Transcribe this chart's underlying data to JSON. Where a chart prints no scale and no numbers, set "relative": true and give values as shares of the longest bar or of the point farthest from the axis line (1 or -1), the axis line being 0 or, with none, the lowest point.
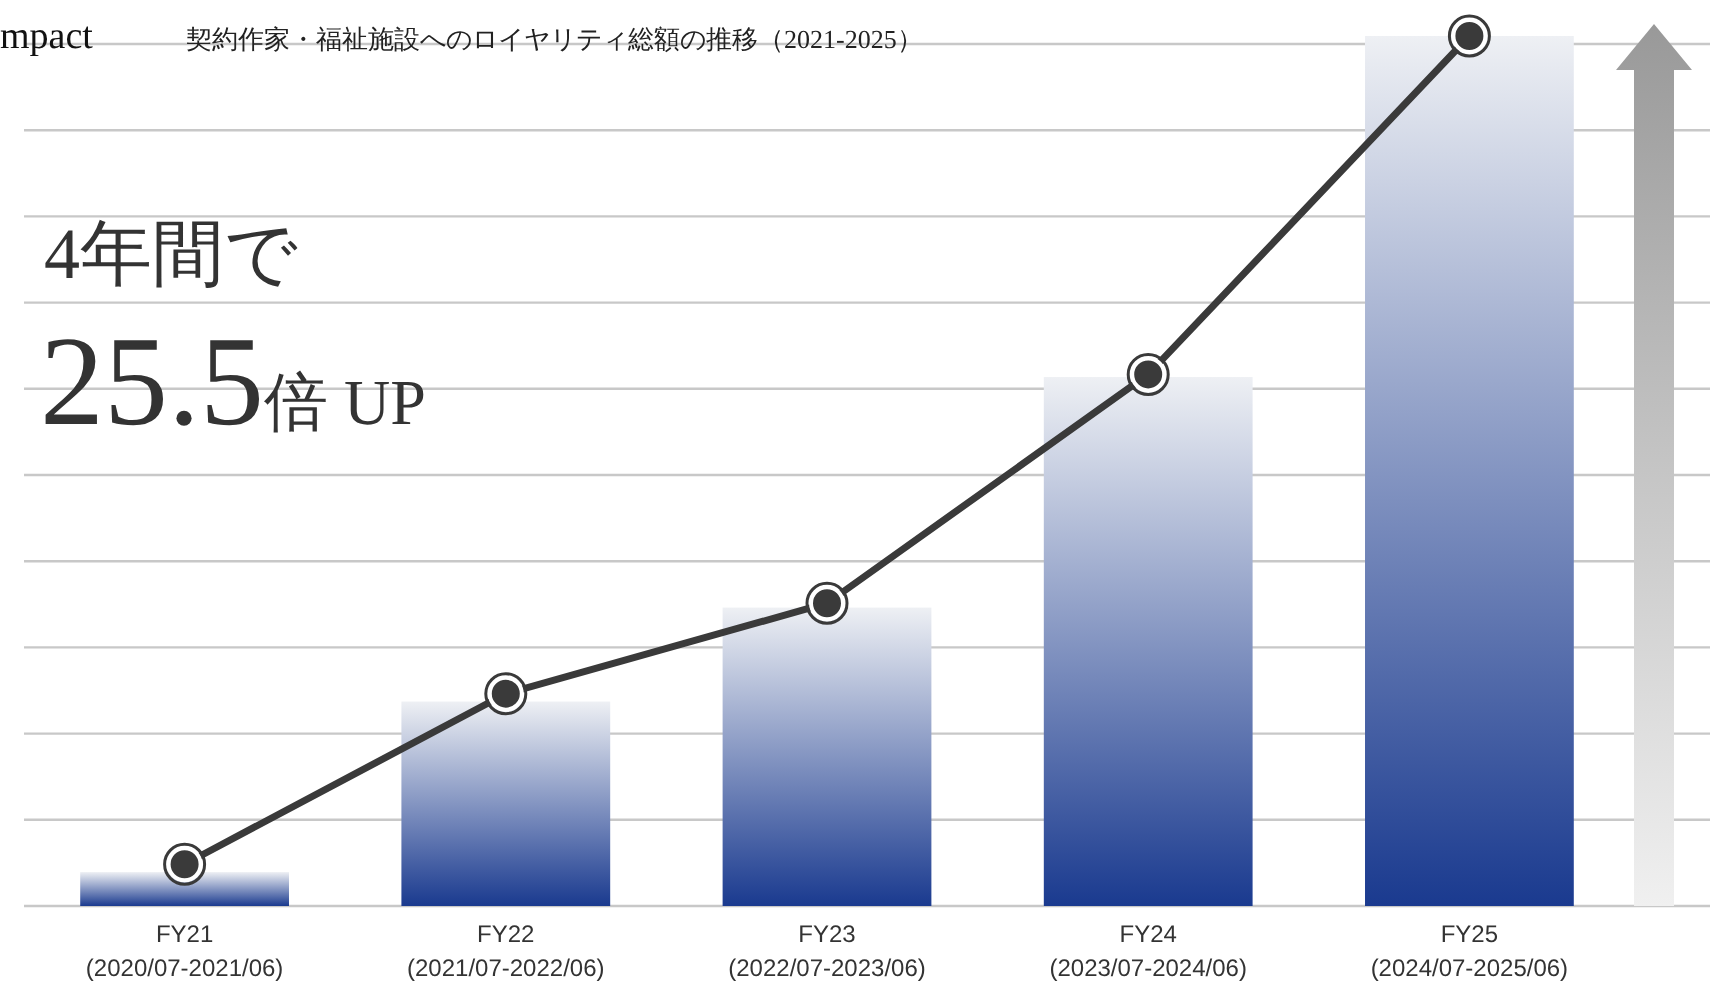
{
  "chart_data": {
    "type": "bar",
    "title": "契約作家・福祉施設へのロイヤリティ総額の推移（2021-2025）",
    "relative": true,
    "grid": "y",
    "categories": [
      "FY21\n(2020/07-2021/06)",
      "FY22\n(2021/07-2022/06)",
      "FY23\n(2022/07-2023/06)",
      "FY24\n(2023/07-2024/06)",
      "FY25\n(2024/07-2025/06)"
    ],
    "series": [
      {
        "color": "#1a3a8f",
        "values": [
          0.039,
          0.235,
          0.343,
          0.608,
          1
        ]
      },
      {
        "type": "line",
        "color": "#3a3a3a",
        "marker": "circle",
        "values": [
          0.048,
          0.244,
          0.348,
          0.611,
          1
        ]
      }
    ],
    "annotations": [
      "mpact",
      "4年間で",
      "25.5倍 UP"
    ]
  }
}
